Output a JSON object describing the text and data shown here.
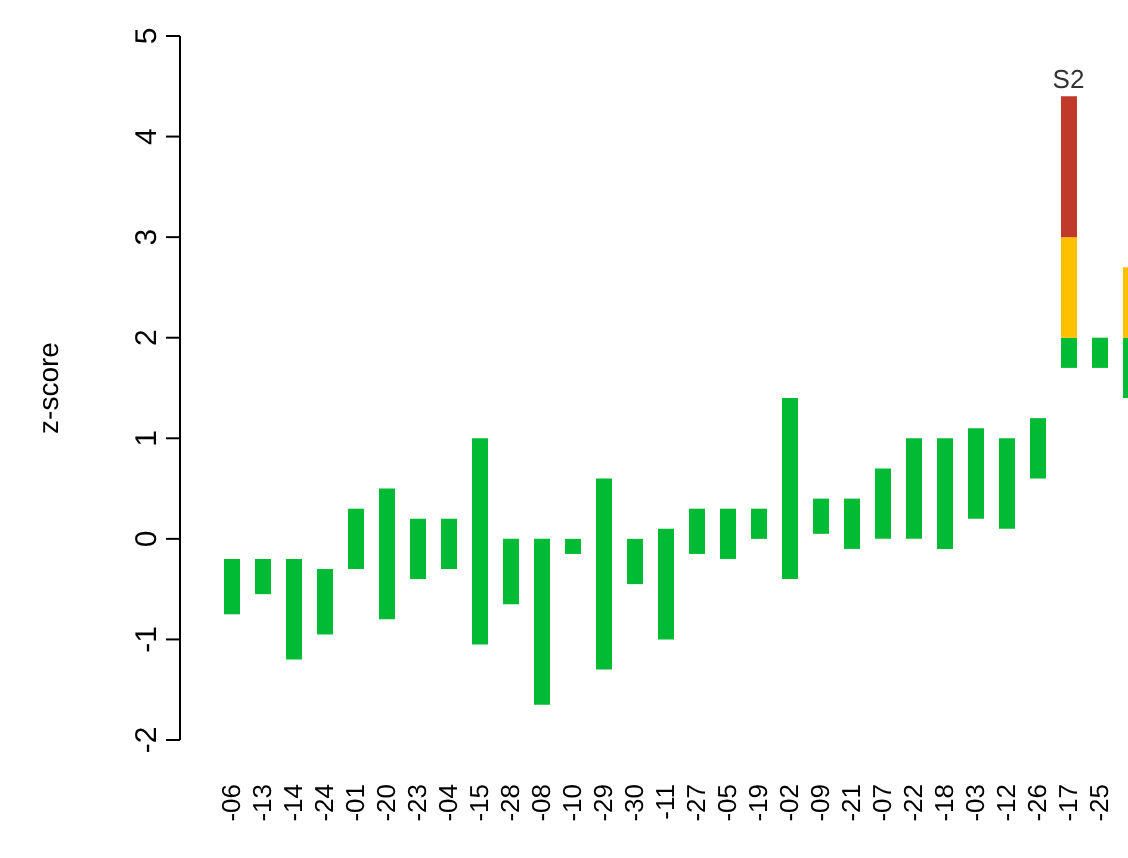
{
  "chart_data": {
    "type": "bar",
    "ylabel": "z-score",
    "categories": [
      "-06",
      "-13",
      "-14",
      "-24",
      "-01",
      "-20",
      "-23",
      "-04",
      "-15",
      "-28",
      "-08",
      "-10",
      "-29",
      "-30",
      "-11",
      "-27",
      "-05",
      "-19",
      "-02",
      "-09",
      "-21",
      "-07",
      "-22",
      "-18",
      "-03",
      "-12",
      "-26",
      "-17",
      "-25",
      null
    ],
    "series": [
      {
        "color": "#00bb33",
        "base": [
          -0.75,
          -0.55,
          -1.2,
          -0.95,
          -0.3,
          -0.8,
          -0.4,
          -0.3,
          -1.05,
          -0.65,
          -1.65,
          -0.15,
          -1.3,
          -0.45,
          -1.0,
          -0.15,
          -0.2,
          0.0,
          -0.4,
          0.05,
          -0.1,
          0.0,
          0.0,
          -0.1,
          0.2,
          0.1,
          0.6,
          1.7,
          1.7,
          1.4
        ],
        "values": [
          0.55,
          0.35,
          1.0,
          0.65,
          0.6,
          1.3,
          0.6,
          0.5,
          2.05,
          0.65,
          1.65,
          0.15,
          1.9,
          0.45,
          1.1,
          0.45,
          0.5,
          0.3,
          1.8,
          0.35,
          0.5,
          0.7,
          1.0,
          1.1,
          0.9,
          0.9,
          0.6,
          0.3,
          0.3,
          0.6
        ]
      },
      {
        "color": "#ffc000",
        "base": [
          null,
          null,
          null,
          null,
          null,
          null,
          null,
          null,
          null,
          null,
          null,
          null,
          null,
          null,
          null,
          null,
          null,
          null,
          null,
          null,
          null,
          null,
          null,
          null,
          null,
          null,
          null,
          2.0,
          null,
          2.0
        ],
        "values": [
          null,
          null,
          null,
          null,
          null,
          null,
          null,
          null,
          null,
          null,
          null,
          null,
          null,
          null,
          null,
          null,
          null,
          null,
          null,
          null,
          null,
          null,
          null,
          null,
          null,
          null,
          null,
          1.0,
          null,
          0.7
        ]
      },
      {
        "color": "#c0392b",
        "base": [
          null,
          null,
          null,
          null,
          null,
          null,
          null,
          null,
          null,
          null,
          null,
          null,
          null,
          null,
          null,
          null,
          null,
          null,
          null,
          null,
          null,
          null,
          null,
          null,
          null,
          null,
          null,
          3.0,
          null,
          null
        ],
        "values": [
          null,
          null,
          null,
          null,
          null,
          null,
          null,
          null,
          null,
          null,
          null,
          null,
          null,
          null,
          null,
          null,
          null,
          null,
          null,
          null,
          null,
          null,
          null,
          null,
          null,
          null,
          null,
          1.4,
          null,
          null
        ]
      }
    ],
    "ylim": [
      -2,
      5
    ],
    "yticks": [
      -2,
      -1,
      0,
      1,
      2,
      3,
      4,
      5
    ],
    "grid": false,
    "legend": false,
    "annotations": [
      "S2"
    ]
  }
}
